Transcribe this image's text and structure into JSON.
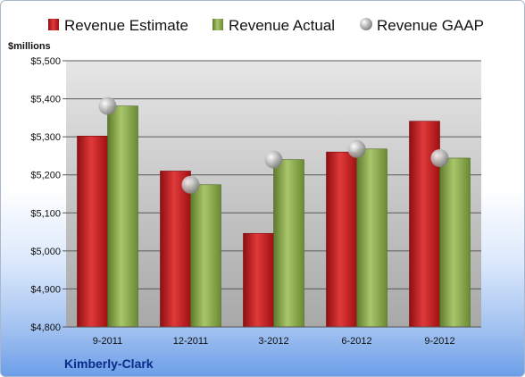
{
  "chart_data": {
    "type": "bar",
    "company": "Kimberly-Clark",
    "unit_label": "$millions",
    "categories": [
      "9-2011",
      "12-2011",
      "3-2012",
      "6-2012",
      "9-2012"
    ],
    "series": [
      {
        "name": "Revenue Estimate",
        "kind": "bar",
        "color": "#c8161b",
        "values": [
          5302,
          5210,
          5046,
          5260,
          5341
        ]
      },
      {
        "name": "Revenue Actual",
        "kind": "bar",
        "color": "#8aab4a",
        "values": [
          5381,
          5174,
          5240,
          5268,
          5244
        ]
      },
      {
        "name": "Revenue GAAP",
        "kind": "marker",
        "color": "#b0b0b0",
        "values": [
          5381,
          5174,
          5240,
          5268,
          5244
        ]
      }
    ],
    "yticks": [
      "$4,800",
      "$4,900",
      "$5,000",
      "$5,100",
      "$5,200",
      "$5,300",
      "$5,400",
      "$5,500"
    ],
    "ylim": [
      4800,
      5500
    ],
    "grid": true,
    "legend_position": "top"
  }
}
